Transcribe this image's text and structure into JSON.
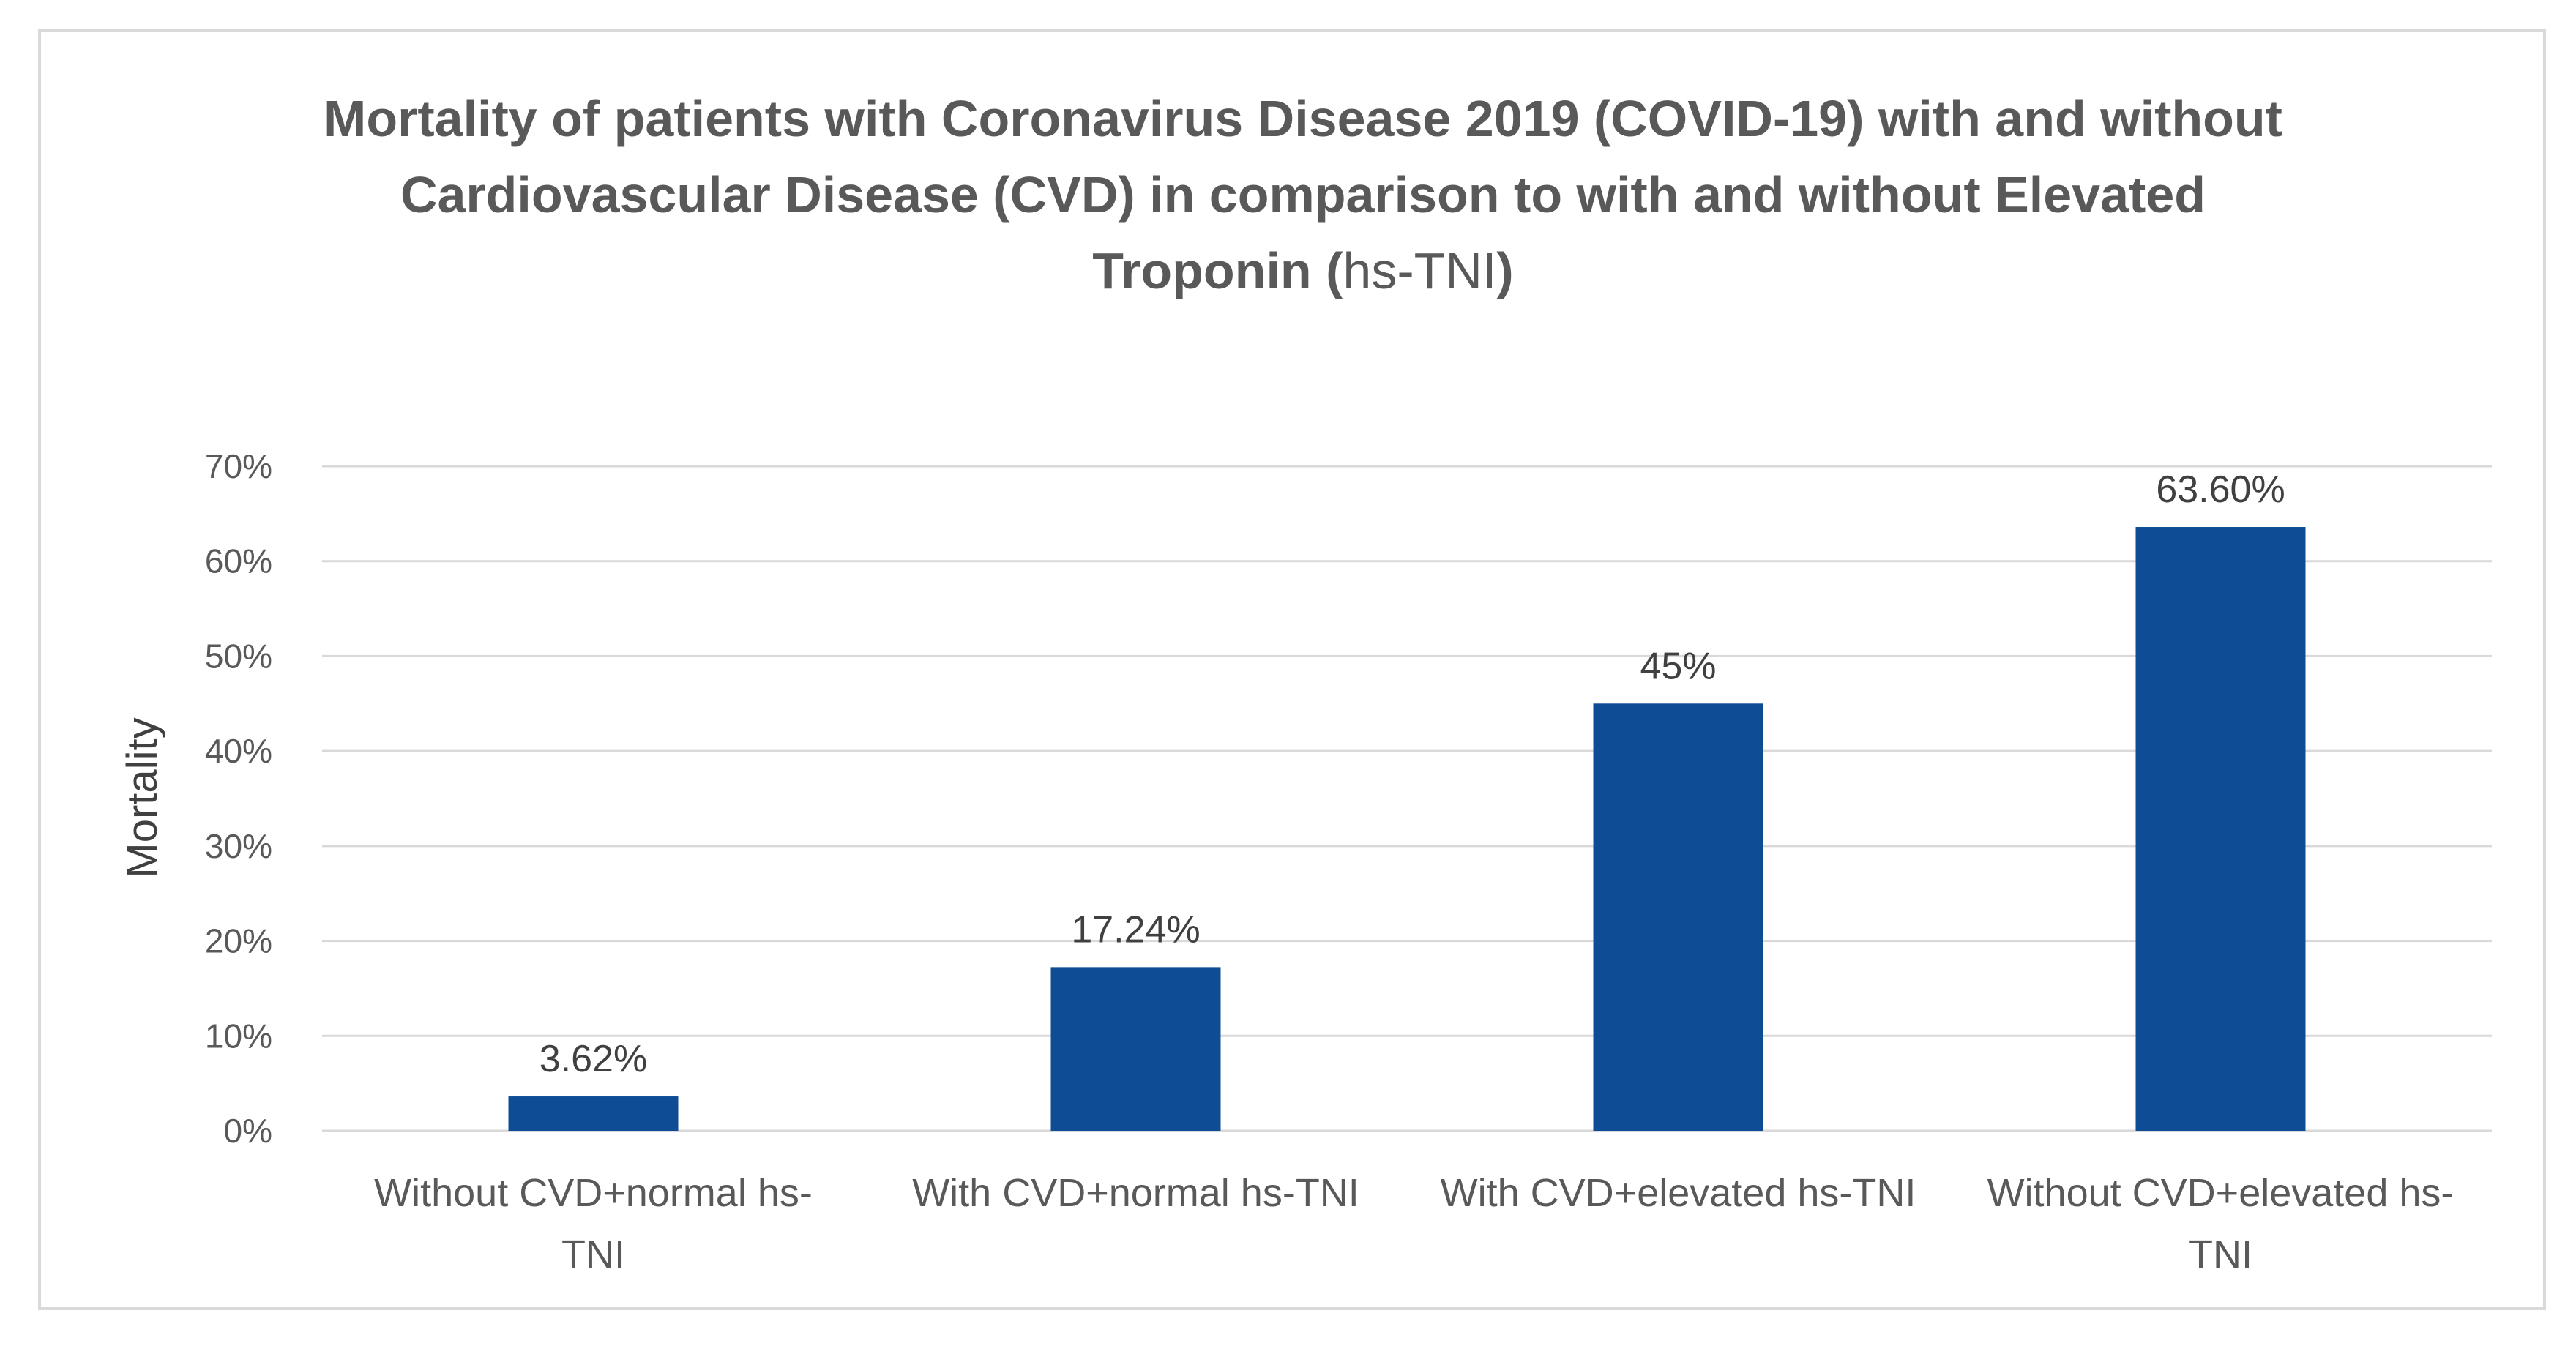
{
  "chart_data": {
    "type": "bar",
    "title": {
      "main": "Mortality of patients with Coronavirus Disease 2019 (COVID-19) with and without Cardiovascular Disease (CVD) in comparison to with and without Elevated Troponin (",
      "tail": "hs-TNI",
      "close": ")"
    },
    "xlabel": "",
    "ylabel": "Mortality",
    "ylim": [
      0,
      70
    ],
    "yticks": [
      "0%",
      "10%",
      "20%",
      "30%",
      "40%",
      "50%",
      "60%",
      "70%"
    ],
    "categories": [
      [
        "Without CVD+normal hs-",
        "TNI"
      ],
      [
        "With CVD+normal hs-TNI"
      ],
      [
        "With CVD+elevated hs-TNI"
      ],
      [
        "Without CVD+elevated hs-",
        "TNI"
      ]
    ],
    "values": [
      3.62,
      17.24,
      45,
      63.6
    ],
    "data_labels": [
      "3.62%",
      "17.24%",
      "45%",
      "63.60%"
    ],
    "bar_color": "#0f4c96",
    "grid_color": "#d9d9d9",
    "grid": true,
    "legend": "none"
  }
}
